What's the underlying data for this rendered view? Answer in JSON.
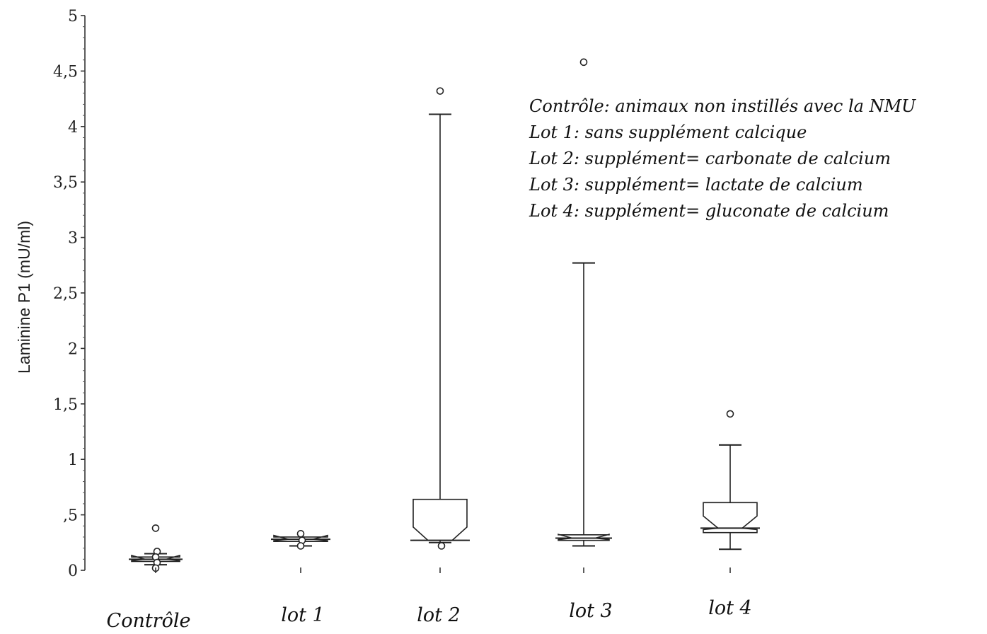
{
  "chart_data": {
    "type": "boxplot",
    "title": "",
    "xlabel": "",
    "ylabel": "Laminine  P1  (mU/ml)",
    "ylim": [
      0,
      5
    ],
    "yticks": [
      {
        "value": 0,
        "label": "0"
      },
      {
        "value": 0.5,
        "label": ",5"
      },
      {
        "value": 1,
        "label": "1"
      },
      {
        "value": 1.5,
        "label": "1,5"
      },
      {
        "value": 2,
        "label": "2"
      },
      {
        "value": 2.5,
        "label": "2,5"
      },
      {
        "value": 3,
        "label": "3"
      },
      {
        "value": 3.5,
        "label": "3,5"
      },
      {
        "value": 4,
        "label": "4"
      },
      {
        "value": 4.5,
        "label": "4,5"
      },
      {
        "value": 5,
        "label": "5"
      }
    ],
    "grid": false,
    "legend_placement": "top-right",
    "legend": [
      "Contrôle: animaux non instillés avec la NMU",
      "Lot 1: sans supplément calcique",
      "Lot 2: supplément= carbonate de calcium",
      "Lot 3: supplément= lactate de calcium",
      "Lot 4: supplément= gluconate de calcium"
    ],
    "categories": [
      "Contrôle",
      "lot 1",
      "lot 2",
      "lot 3",
      "lot 4"
    ],
    "boxes": [
      {
        "whisker_low": 0.05,
        "q1": 0.08,
        "median": 0.1,
        "q3": 0.12,
        "whisker_high": 0.15,
        "outliers": [
          0.38,
          0.17,
          0.12,
          0.07,
          0.02
        ]
      },
      {
        "whisker_low": 0.22,
        "q1": 0.26,
        "median": 0.28,
        "q3": 0.3,
        "whisker_high": 0.3,
        "outliers": [
          0.33,
          0.27,
          0.22
        ]
      },
      {
        "whisker_low": 0.25,
        "q1": 0.27,
        "median": 0.27,
        "q3": 0.64,
        "whisker_high": 4.11,
        "outliers": [
          4.32,
          0.22
        ]
      },
      {
        "whisker_low": 0.22,
        "q1": 0.27,
        "median": 0.29,
        "q3": 0.32,
        "whisker_high": 2.77,
        "outliers": [
          4.58
        ]
      },
      {
        "whisker_low": 0.19,
        "q1": 0.34,
        "median": 0.38,
        "q3": 0.61,
        "whisker_high": 1.13,
        "outliers": [
          1.41
        ]
      }
    ]
  }
}
